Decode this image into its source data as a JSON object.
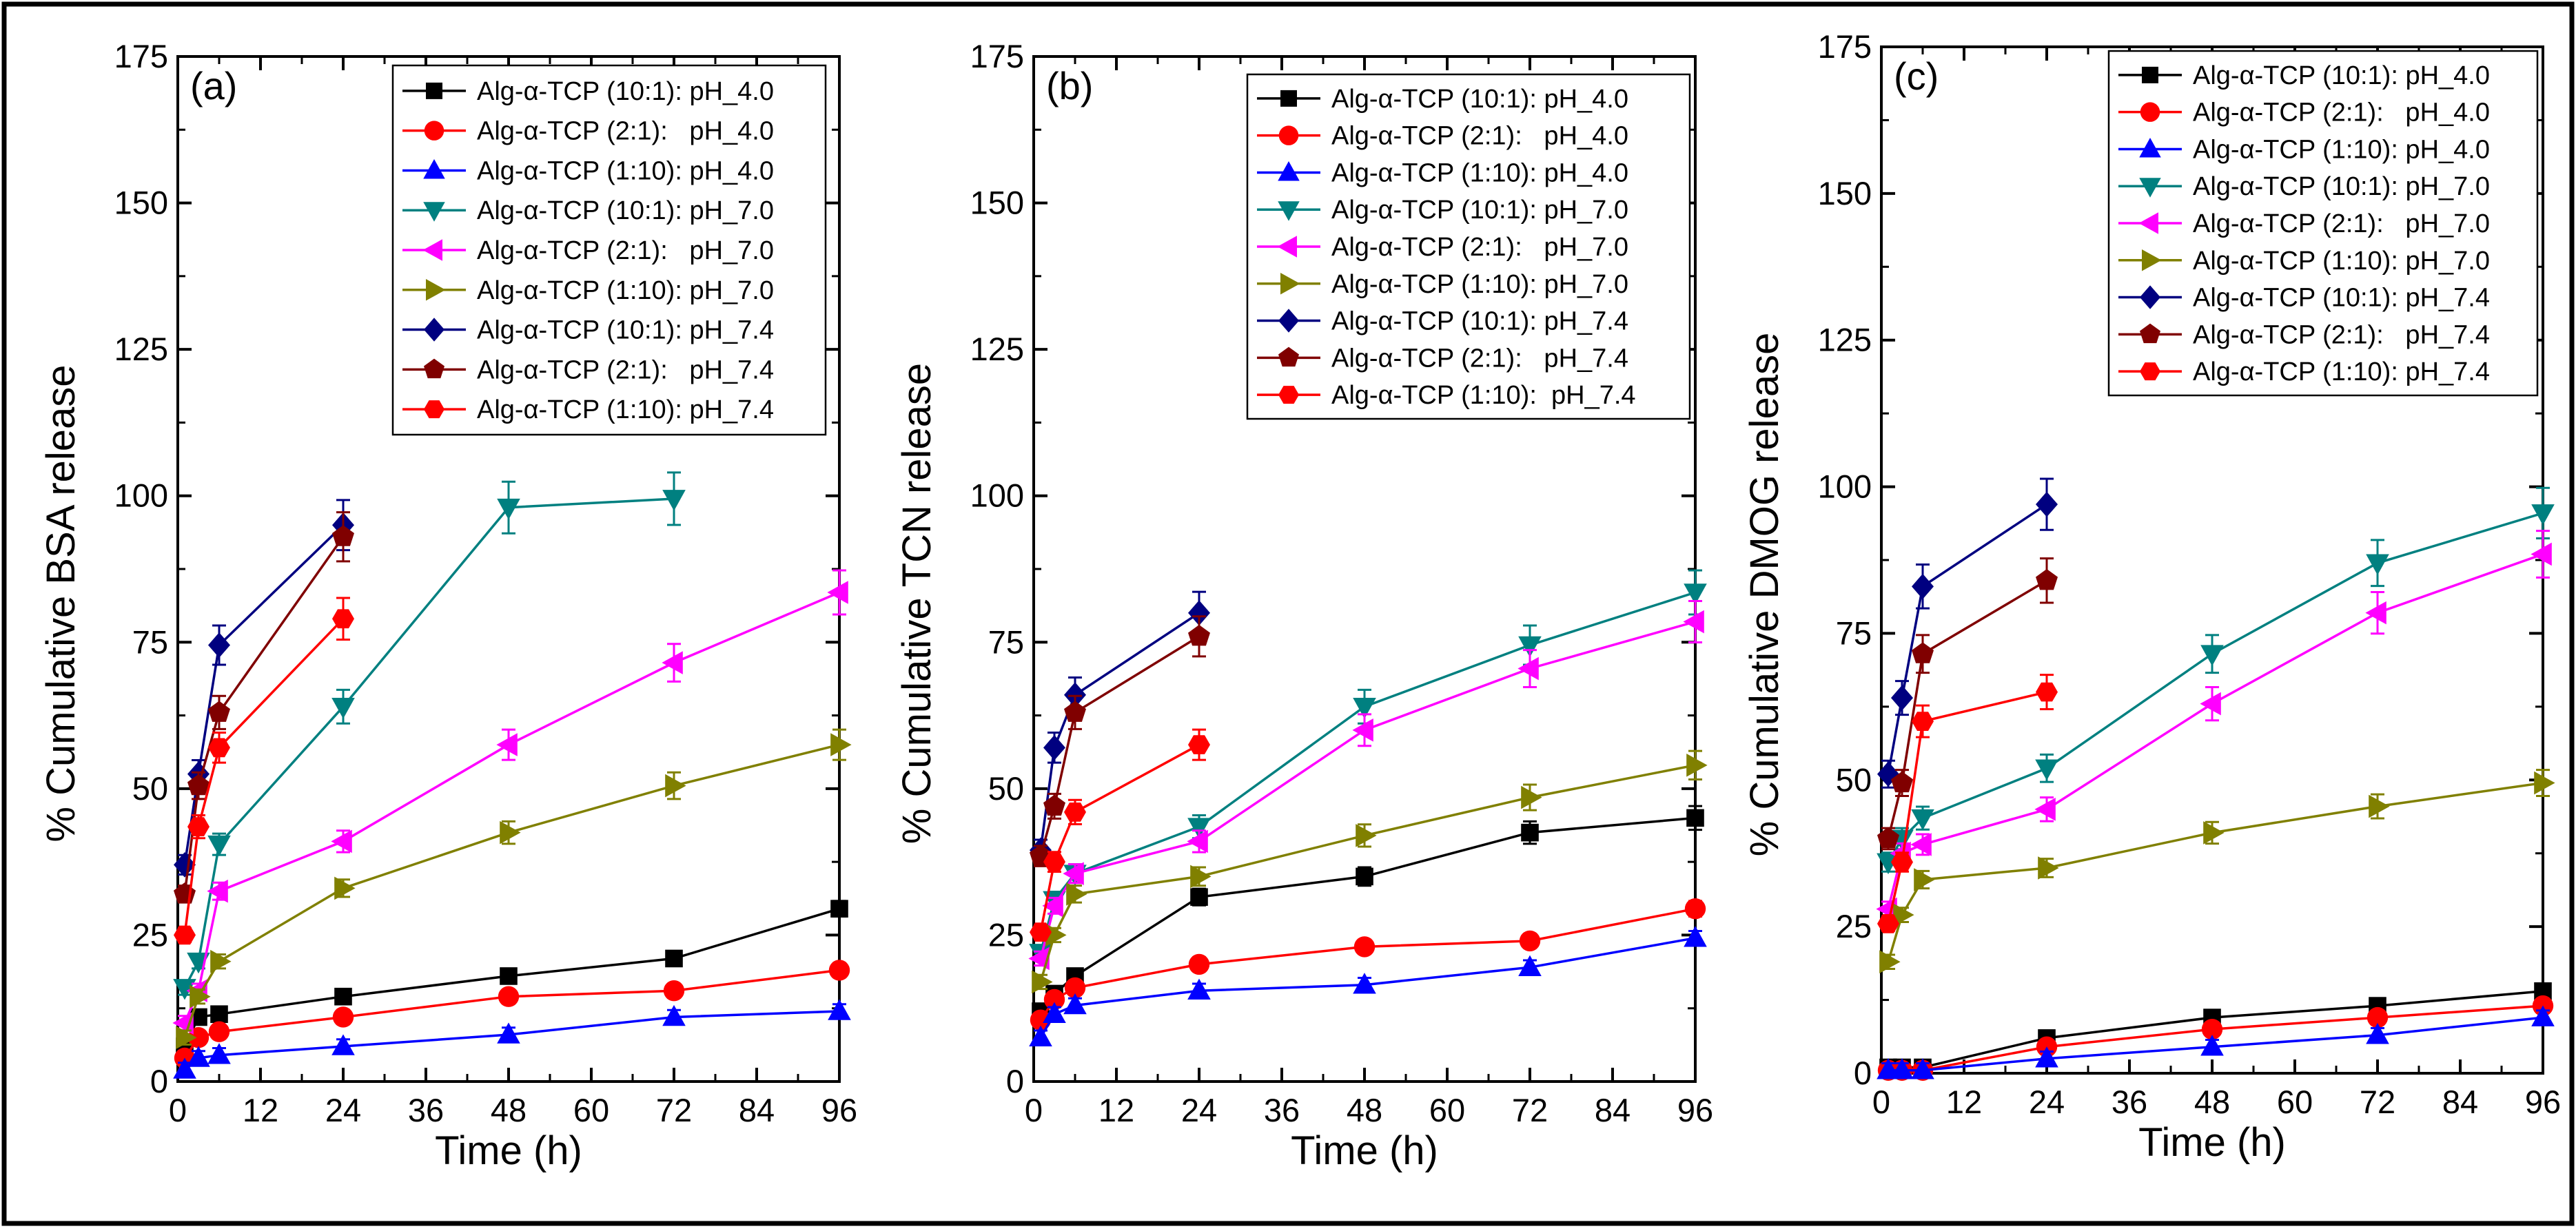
{
  "chart_data": [
    {
      "type": "line",
      "panel_label": "(a)",
      "xlabel": "Time (h)",
      "ylabel": "% Cumulative BSA release",
      "xlim": [
        0,
        96
      ],
      "ylim": [
        0,
        175
      ],
      "xticks": [
        0,
        12,
        24,
        36,
        48,
        60,
        72,
        84,
        96
      ],
      "yticks": [
        0,
        25,
        50,
        75,
        100,
        125,
        150,
        175
      ],
      "legend_position": "top-right",
      "series": [
        {
          "name": "Alg-α-TCP (10:1): pH_4.0",
          "color": "#000000",
          "marker": "square",
          "x": [
            1,
            3,
            6,
            24,
            48,
            72,
            96
          ],
          "y": [
            6,
            11,
            11.5,
            14.5,
            18,
            21,
            29.5
          ]
        },
        {
          "name": "Alg-α-TCP (2:1):   pH_4.0",
          "color": "#ff0000",
          "marker": "circle",
          "x": [
            1,
            3,
            6,
            24,
            48,
            72,
            96
          ],
          "y": [
            4,
            7.5,
            8.5,
            11,
            14.5,
            15.5,
            19
          ]
        },
        {
          "name": "Alg-α-TCP (1:10): pH_4.0",
          "color": "#0000ff",
          "marker": "triangle-up",
          "x": [
            1,
            3,
            6,
            24,
            48,
            72,
            96
          ],
          "y": [
            2,
            4,
            4.5,
            6,
            8,
            11,
            12
          ]
        },
        {
          "name": "Alg-α-TCP (10:1): pH_7.0",
          "color": "#008080",
          "marker": "triangle-down",
          "x": [
            1,
            3,
            6,
            24,
            48,
            72
          ],
          "y": [
            16,
            20.5,
            40.5,
            64,
            98,
            99.5
          ]
        },
        {
          "name": "Alg-α-TCP (2:1):   pH_7.0",
          "color": "#ff00ff",
          "marker": "triangle-left",
          "x": [
            1,
            3,
            6,
            24,
            48,
            72,
            96
          ],
          "y": [
            10,
            15.5,
            32.5,
            41,
            57.5,
            71.5,
            83.5
          ]
        },
        {
          "name": "Alg-α-TCP (1:10): pH_7.0",
          "color": "#808000",
          "marker": "triangle-right",
          "x": [
            1,
            3,
            6,
            24,
            48,
            72,
            96
          ],
          "y": [
            7.5,
            14.5,
            20.5,
            33,
            42.5,
            50.5,
            57.5
          ]
        },
        {
          "name": "Alg-α-TCP (10:1): pH_7.4",
          "color": "#000080",
          "marker": "diamond",
          "x": [
            1,
            3,
            6,
            24
          ],
          "y": [
            37,
            52.5,
            74.5,
            95
          ]
        },
        {
          "name": "Alg-α-TCP (2:1):   pH_7.4",
          "color": "#800000",
          "marker": "pentagon",
          "x": [
            1,
            3,
            6,
            24
          ],
          "y": [
            32,
            50.5,
            63,
            93
          ]
        },
        {
          "name": "Alg-α-TCP (1:10): pH_7.4",
          "color": "#ff0000",
          "marker": "hexagon",
          "x": [
            1,
            3,
            6,
            24
          ],
          "y": [
            25,
            43.5,
            57,
            79
          ]
        }
      ]
    },
    {
      "type": "line",
      "panel_label": "(b)",
      "xlabel": "Time (h)",
      "ylabel": "% Cumulative TCN release",
      "xlim": [
        0,
        96
      ],
      "ylim": [
        0,
        175
      ],
      "xticks": [
        0,
        12,
        24,
        36,
        48,
        60,
        72,
        84,
        96
      ],
      "yticks": [
        0,
        25,
        50,
        75,
        100,
        125,
        150,
        175
      ],
      "legend_position": "top-right",
      "series": [
        {
          "name": "Alg-α-TCP (10:1): pH_4.0",
          "color": "#000000",
          "marker": "square",
          "x": [
            1,
            3,
            6,
            24,
            48,
            72,
            96
          ],
          "y": [
            12,
            15,
            18,
            31.5,
            35,
            42.5,
            45
          ]
        },
        {
          "name": "Alg-α-TCP (2:1):   pH_4.0",
          "color": "#ff0000",
          "marker": "circle",
          "x": [
            1,
            3,
            6,
            24,
            48,
            72,
            96
          ],
          "y": [
            10.5,
            14,
            16,
            20,
            23,
            24,
            29.5
          ]
        },
        {
          "name": "Alg-α-TCP (1:10): pH_4.0",
          "color": "#0000ff",
          "marker": "triangle-up",
          "x": [
            1,
            3,
            6,
            24,
            48,
            72,
            96
          ],
          "y": [
            7.5,
            11.5,
            13,
            15.5,
            16.5,
            19.5,
            24.5
          ]
        },
        {
          "name": "Alg-α-TCP (10:1): pH_7.0",
          "color": "#008080",
          "marker": "triangle-down",
          "x": [
            1,
            3,
            6,
            24,
            48,
            72,
            96
          ],
          "y": [
            22,
            31,
            35.5,
            43.5,
            64,
            74.5,
            83.5
          ]
        },
        {
          "name": "Alg-α-TCP (2:1):   pH_7.0",
          "color": "#ff00ff",
          "marker": "triangle-left",
          "x": [
            1,
            3,
            6,
            24,
            48,
            72,
            96
          ],
          "y": [
            21,
            30,
            35.5,
            41,
            60,
            70.5,
            78.5
          ]
        },
        {
          "name": "Alg-α-TCP (1:10): pH_7.0",
          "color": "#808000",
          "marker": "triangle-right",
          "x": [
            1,
            3,
            6,
            24,
            48,
            72,
            96
          ],
          "y": [
            17,
            25,
            32,
            35,
            42,
            48.5,
            54
          ]
        },
        {
          "name": "Alg-α-TCP (10:1): pH_7.4",
          "color": "#000080",
          "marker": "diamond",
          "x": [
            1,
            3,
            6,
            24
          ],
          "y": [
            39.5,
            57,
            66,
            80
          ]
        },
        {
          "name": "Alg-α-TCP (2:1):   pH_7.4",
          "color": "#800000",
          "marker": "pentagon",
          "x": [
            1,
            3,
            6,
            24
          ],
          "y": [
            38.5,
            47,
            63,
            76
          ]
        },
        {
          "name": "Alg-α-TCP (1:10):  pH_7.4",
          "color": "#ff0000",
          "marker": "hexagon",
          "x": [
            1,
            3,
            6,
            24
          ],
          "y": [
            25.5,
            37.5,
            46,
            57.5
          ]
        }
      ]
    },
    {
      "type": "line",
      "panel_label": "(c)",
      "xlabel": "Time (h)",
      "ylabel": "% Cumulative DMOG release",
      "xlim": [
        0,
        96
      ],
      "ylim": [
        0,
        175
      ],
      "xticks": [
        0,
        12,
        24,
        36,
        48,
        60,
        72,
        84,
        96
      ],
      "yticks": [
        0,
        25,
        50,
        75,
        100,
        125,
        150,
        175
      ],
      "legend_position": "top-right",
      "series": [
        {
          "name": "Alg-α-TCP (10:1): pH_4.0",
          "color": "#000000",
          "marker": "square",
          "x": [
            1,
            3,
            6,
            24,
            48,
            72,
            96
          ],
          "y": [
            1,
            1,
            1,
            6,
            9.5,
            11.5,
            14
          ]
        },
        {
          "name": "Alg-α-TCP (2:1):   pH_4.0",
          "color": "#ff0000",
          "marker": "circle",
          "x": [
            1,
            3,
            6,
            24,
            48,
            72,
            96
          ],
          "y": [
            0.5,
            0.5,
            0.5,
            4.5,
            7.5,
            9.5,
            11.5
          ]
        },
        {
          "name": "Alg-α-TCP (1:10): pH_4.0",
          "color": "#0000ff",
          "marker": "triangle-up",
          "x": [
            1,
            3,
            6,
            24,
            48,
            72,
            96
          ],
          "y": [
            0.5,
            0.5,
            0.5,
            2.5,
            4.5,
            6.5,
            9.5
          ]
        },
        {
          "name": "Alg-α-TCP (10:1): pH_7.0",
          "color": "#008080",
          "marker": "triangle-down",
          "x": [
            1,
            3,
            6,
            24,
            48,
            72,
            96
          ],
          "y": [
            36,
            40,
            43.5,
            52,
            71.5,
            87,
            95.5
          ]
        },
        {
          "name": "Alg-α-TCP (2:1):   pH_7.0",
          "color": "#ff00ff",
          "marker": "triangle-left",
          "x": [
            1,
            3,
            6,
            24,
            48,
            72,
            96
          ],
          "y": [
            28,
            37.5,
            39,
            45,
            63,
            78.5,
            88.5
          ]
        },
        {
          "name": "Alg-α-TCP (1:10): pH_7.0",
          "color": "#808000",
          "marker": "triangle-right",
          "x": [
            1,
            3,
            6,
            24,
            48,
            72,
            96
          ],
          "y": [
            19,
            27,
            33,
            35,
            41,
            45.5,
            49.5
          ]
        },
        {
          "name": "Alg-α-TCP (10:1): pH_7.4",
          "color": "#000080",
          "marker": "diamond",
          "x": [
            1,
            3,
            6,
            24
          ],
          "y": [
            51,
            64,
            83,
            97
          ]
        },
        {
          "name": "Alg-α-TCP (2:1):   pH_7.4",
          "color": "#800000",
          "marker": "pentagon",
          "x": [
            1,
            3,
            6,
            24
          ],
          "y": [
            40,
            49.5,
            71.5,
            84
          ]
        },
        {
          "name": "Alg-α-TCP (1:10): pH_7.4",
          "color": "#ff0000",
          "marker": "hexagon",
          "x": [
            1,
            3,
            6,
            24
          ],
          "y": [
            25.5,
            36,
            60,
            65
          ]
        }
      ]
    }
  ]
}
